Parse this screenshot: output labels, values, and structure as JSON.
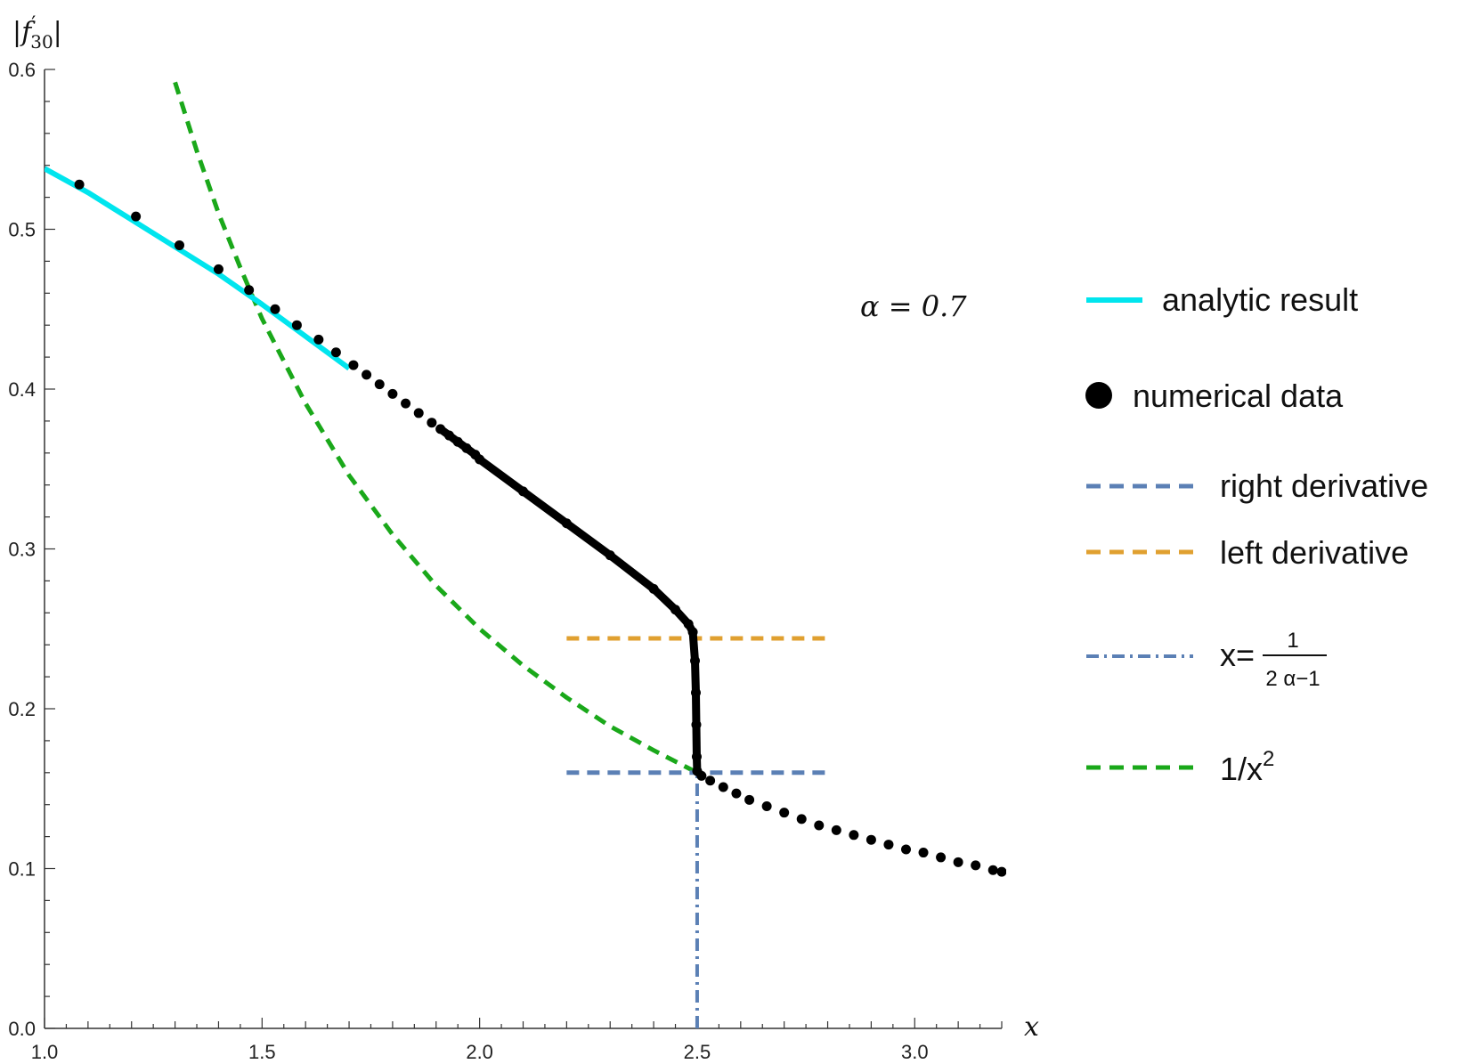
{
  "chart_data": {
    "type": "line",
    "xlabel": "x",
    "ylabel": "|f'30|",
    "xlim": [
      1.0,
      3.2
    ],
    "ylim": [
      0.0,
      0.6
    ],
    "x_ticks": [
      "1.0",
      "1.5",
      "2.0",
      "2.5",
      "3.0"
    ],
    "x_tick_values": [
      1.0,
      1.5,
      2.0,
      2.5,
      3.0
    ],
    "y_ticks": [
      "0.0",
      "0.1",
      "0.2",
      "0.3",
      "0.4",
      "0.5",
      "0.6"
    ],
    "y_tick_values": [
      0.0,
      0.1,
      0.2,
      0.3,
      0.4,
      0.5,
      0.6
    ],
    "annotation": "α = 0.7",
    "grid": false,
    "legend_position": "right",
    "series": [
      {
        "name": "analytic result",
        "style": "solid",
        "color": "#00e5ee",
        "x": [
          1.0,
          1.1,
          1.2,
          1.3,
          1.4,
          1.5,
          1.6,
          1.7
        ],
        "y": [
          0.538,
          0.523,
          0.506,
          0.489,
          0.472,
          0.453,
          0.433,
          0.413
        ]
      },
      {
        "name": "numerical data",
        "style": "markers",
        "color": "#000000",
        "x": [
          1.08,
          1.21,
          1.31,
          1.4,
          1.47,
          1.53,
          1.58,
          1.63,
          1.67,
          1.71,
          1.74,
          1.77,
          1.8,
          1.83,
          1.86,
          1.89,
          1.91,
          1.93,
          1.95,
          1.97,
          1.99,
          2.0,
          2.1,
          2.2,
          2.3,
          2.4,
          2.45,
          2.48,
          2.49,
          2.495,
          2.497,
          2.498,
          2.499,
          2.5,
          2.51,
          2.53,
          2.56,
          2.59,
          2.62,
          2.66,
          2.7,
          2.74,
          2.78,
          2.82,
          2.86,
          2.9,
          2.94,
          2.98,
          3.02,
          3.06,
          3.1,
          3.14,
          3.18,
          3.2
        ],
        "y": [
          0.528,
          0.508,
          0.49,
          0.475,
          0.462,
          0.45,
          0.44,
          0.431,
          0.423,
          0.415,
          0.409,
          0.403,
          0.397,
          0.391,
          0.385,
          0.379,
          0.375,
          0.371,
          0.367,
          0.363,
          0.359,
          0.356,
          0.336,
          0.316,
          0.296,
          0.275,
          0.262,
          0.253,
          0.248,
          0.23,
          0.21,
          0.19,
          0.17,
          0.161,
          0.158,
          0.155,
          0.151,
          0.147,
          0.143,
          0.139,
          0.135,
          0.131,
          0.127,
          0.124,
          0.121,
          0.118,
          0.115,
          0.112,
          0.11,
          0.107,
          0.104,
          0.102,
          0.099,
          0.098
        ]
      },
      {
        "name": "right derivative",
        "style": "dashed",
        "color": "#5b80b5",
        "x": [
          2.2,
          2.8
        ],
        "y": [
          0.16,
          0.16
        ]
      },
      {
        "name": "left derivative",
        "style": "dashed",
        "color": "#e0a030",
        "x": [
          2.2,
          2.8
        ],
        "y": [
          0.244,
          0.244
        ]
      },
      {
        "name": "x=1/(2α−1)",
        "style": "dash-dot",
        "color": "#5b80b5",
        "x": [
          2.5,
          2.5
        ],
        "y": [
          0.0,
          0.16
        ]
      },
      {
        "name": "1/x²",
        "style": "dashed",
        "color": "#1aa81a",
        "x": [
          1.3,
          1.35,
          1.4,
          1.45,
          1.5,
          1.6,
          1.7,
          1.8,
          1.9,
          2.0,
          2.1,
          2.2,
          2.3,
          2.4,
          2.5
        ],
        "y": [
          0.592,
          0.549,
          0.51,
          0.476,
          0.444,
          0.391,
          0.346,
          0.309,
          0.277,
          0.25,
          0.227,
          0.207,
          0.189,
          0.174,
          0.16
        ]
      }
    ]
  },
  "legend": {
    "items": [
      {
        "label": "analytic result"
      },
      {
        "label": "numerical data"
      },
      {
        "label": "right derivative"
      },
      {
        "label": "left derivative"
      },
      {
        "label_prefix": "x=",
        "label_num": "1",
        "label_den": "2 α−1"
      },
      {
        "label_base": "1/x",
        "label_sup": "2"
      }
    ]
  }
}
